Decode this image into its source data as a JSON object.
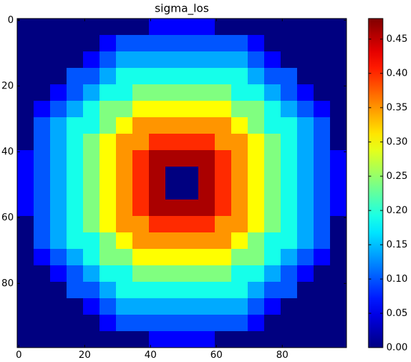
{
  "chart_data": {
    "type": "heatmap",
    "title": "sigma_los",
    "colormap": "jet",
    "xlim": [
      -0.5,
      99.5
    ],
    "ylim": [
      99.5,
      -0.5
    ],
    "xticks": [
      0,
      20,
      40,
      60,
      80
    ],
    "yticks": [
      0,
      20,
      40,
      60,
      80
    ],
    "clim": [
      0,
      0.48
    ],
    "cticks": [
      {
        "value": 0,
        "label": "0.00"
      },
      {
        "value": 0.05,
        "label": "0.05"
      },
      {
        "value": 0.1,
        "label": "0.10"
      },
      {
        "value": 0.15,
        "label": "0.15"
      },
      {
        "value": 0.2,
        "label": "0.20"
      },
      {
        "value": 0.25,
        "label": "0.25"
      },
      {
        "value": 0.3,
        "label": "0.30"
      },
      {
        "value": 0.35,
        "label": "0.35"
      },
      {
        "value": 0.4,
        "label": "0.40"
      },
      {
        "value": 0.45,
        "label": "0.45"
      }
    ],
    "values": [
      [
        0,
        0,
        0,
        0,
        0,
        0,
        0,
        0,
        0.06,
        0.06,
        0.06,
        0.06,
        0,
        0,
        0,
        0,
        0,
        0,
        0,
        0
      ],
      [
        0,
        0,
        0,
        0,
        0,
        0.06,
        0.1,
        0.1,
        0.1,
        0.1,
        0.1,
        0.1,
        0.1,
        0.1,
        0.06,
        0,
        0,
        0,
        0,
        0
      ],
      [
        0,
        0,
        0,
        0,
        0.06,
        0.1,
        0.14,
        0.14,
        0.14,
        0.14,
        0.14,
        0.14,
        0.14,
        0.14,
        0.1,
        0.06,
        0,
        0,
        0,
        0
      ],
      [
        0,
        0,
        0,
        0.1,
        0.1,
        0.14,
        0.19,
        0.19,
        0.19,
        0.19,
        0.19,
        0.19,
        0.19,
        0.19,
        0.14,
        0.1,
        0.1,
        0,
        0,
        0
      ],
      [
        0,
        0,
        0.06,
        0.1,
        0.14,
        0.19,
        0.19,
        0.24,
        0.24,
        0.24,
        0.24,
        0.24,
        0.24,
        0.19,
        0.19,
        0.14,
        0.1,
        0.06,
        0,
        0
      ],
      [
        0,
        0.06,
        0.1,
        0.14,
        0.19,
        0.24,
        0.24,
        0.3,
        0.3,
        0.3,
        0.3,
        0.3,
        0.3,
        0.24,
        0.24,
        0.19,
        0.14,
        0.1,
        0.06,
        0
      ],
      [
        0,
        0.1,
        0.14,
        0.19,
        0.19,
        0.24,
        0.3,
        0.35,
        0.35,
        0.35,
        0.35,
        0.35,
        0.35,
        0.3,
        0.24,
        0.19,
        0.19,
        0.14,
        0.1,
        0
      ],
      [
        0,
        0.1,
        0.14,
        0.19,
        0.24,
        0.3,
        0.35,
        0.35,
        0.4,
        0.4,
        0.4,
        0.4,
        0.35,
        0.35,
        0.3,
        0.24,
        0.19,
        0.14,
        0.1,
        0
      ],
      [
        0.06,
        0.1,
        0.14,
        0.19,
        0.24,
        0.3,
        0.35,
        0.4,
        0.46,
        0.46,
        0.46,
        0.46,
        0.4,
        0.35,
        0.3,
        0.24,
        0.19,
        0.14,
        0.1,
        0.06
      ],
      [
        0.06,
        0.1,
        0.14,
        0.19,
        0.24,
        0.3,
        0.35,
        0.4,
        0.46,
        0,
        0,
        0.46,
        0.4,
        0.35,
        0.3,
        0.24,
        0.19,
        0.14,
        0.1,
        0.06
      ],
      [
        0.06,
        0.1,
        0.14,
        0.19,
        0.24,
        0.3,
        0.35,
        0.4,
        0.46,
        0,
        0,
        0.46,
        0.4,
        0.35,
        0.3,
        0.24,
        0.19,
        0.14,
        0.1,
        0.06
      ],
      [
        0.06,
        0.1,
        0.14,
        0.19,
        0.24,
        0.3,
        0.35,
        0.4,
        0.46,
        0.46,
        0.46,
        0.46,
        0.4,
        0.35,
        0.3,
        0.24,
        0.19,
        0.14,
        0.1,
        0.06
      ],
      [
        0,
        0.1,
        0.14,
        0.19,
        0.24,
        0.3,
        0.35,
        0.35,
        0.4,
        0.4,
        0.4,
        0.4,
        0.35,
        0.35,
        0.3,
        0.24,
        0.19,
        0.14,
        0.1,
        0
      ],
      [
        0,
        0.1,
        0.14,
        0.19,
        0.19,
        0.24,
        0.3,
        0.35,
        0.35,
        0.35,
        0.35,
        0.35,
        0.35,
        0.3,
        0.24,
        0.19,
        0.19,
        0.14,
        0.1,
        0
      ],
      [
        0,
        0.06,
        0.1,
        0.14,
        0.19,
        0.24,
        0.24,
        0.3,
        0.3,
        0.3,
        0.3,
        0.3,
        0.3,
        0.24,
        0.24,
        0.19,
        0.14,
        0.1,
        0.06,
        0
      ],
      [
        0,
        0,
        0.06,
        0.1,
        0.14,
        0.19,
        0.19,
        0.24,
        0.24,
        0.24,
        0.24,
        0.24,
        0.24,
        0.19,
        0.19,
        0.14,
        0.1,
        0.06,
        0,
        0
      ],
      [
        0,
        0,
        0,
        0.1,
        0.1,
        0.14,
        0.19,
        0.19,
        0.19,
        0.19,
        0.19,
        0.19,
        0.19,
        0.19,
        0.14,
        0.1,
        0.1,
        0,
        0,
        0
      ],
      [
        0,
        0,
        0,
        0,
        0.06,
        0.1,
        0.14,
        0.14,
        0.14,
        0.14,
        0.14,
        0.14,
        0.14,
        0.14,
        0.1,
        0.06,
        0,
        0,
        0,
        0
      ],
      [
        0,
        0,
        0,
        0,
        0,
        0.06,
        0.1,
        0.1,
        0.1,
        0.1,
        0.1,
        0.1,
        0.1,
        0.1,
        0.06,
        0,
        0,
        0,
        0,
        0
      ],
      [
        0,
        0,
        0,
        0,
        0,
        0,
        0,
        0,
        0.06,
        0.06,
        0.06,
        0.06,
        0,
        0,
        0,
        0,
        0,
        0,
        0,
        0
      ]
    ]
  }
}
